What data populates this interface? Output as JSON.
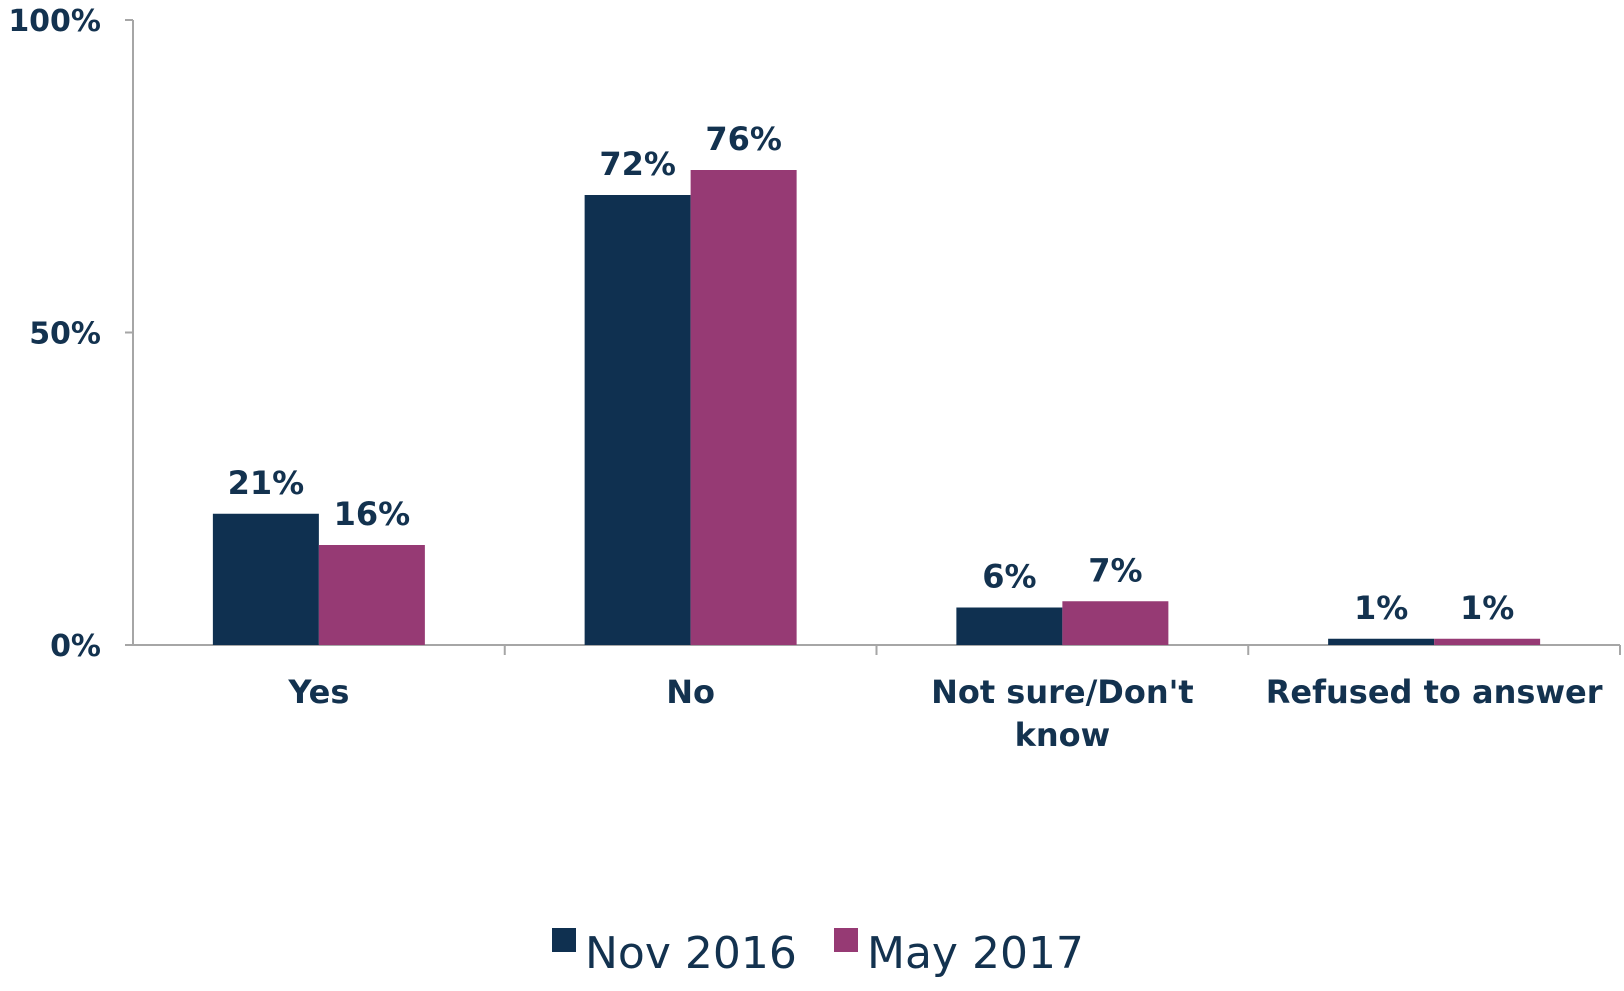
{
  "chart_data": {
    "type": "bar",
    "categories": [
      [
        "Yes"
      ],
      [
        "No"
      ],
      [
        "Not sure/Don't",
        "know"
      ],
      [
        "Refused to answer"
      ]
    ],
    "series": [
      {
        "name": "Nov 2016",
        "color": "#0f3050",
        "values": [
          21,
          72,
          6,
          1
        ],
        "labels": [
          "21%",
          "72%",
          "6%",
          "1%"
        ]
      },
      {
        "name": "May 2017",
        "color": "#963a74",
        "values": [
          16,
          76,
          7,
          1
        ],
        "labels": [
          "16%",
          "76%",
          "7%",
          "1%"
        ]
      }
    ],
    "y_ticks": [
      {
        "value": 0,
        "label": "0%"
      },
      {
        "value": 50,
        "label": "50%"
      },
      {
        "value": 100,
        "label": "100%"
      }
    ],
    "ylim": [
      0,
      100
    ],
    "grid": false,
    "legend_position": "bottom-center",
    "text_color": "#13324f",
    "axis_color": "#a6a6a6"
  }
}
